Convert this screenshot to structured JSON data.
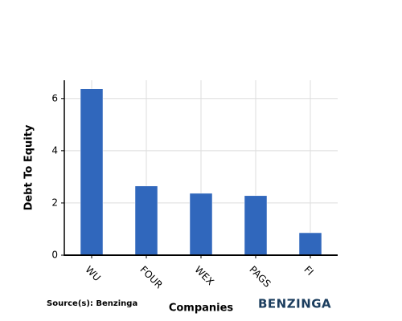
{
  "chart_data": {
    "type": "bar",
    "x_label": "Companies",
    "y_label": "Debt To Equity",
    "categories": [
      "WU",
      "FOUR",
      "WEX",
      "PAGS",
      "FI"
    ],
    "values": [
      6.37,
      2.65,
      2.37,
      2.28,
      0.86
    ],
    "color": "#3067bc",
    "ylim": [
      0,
      6.7
    ],
    "yticks": [
      0,
      2,
      4,
      6
    ],
    "grid": true,
    "source": "Source(s): Benzinga",
    "logo": "BENZINGA"
  }
}
